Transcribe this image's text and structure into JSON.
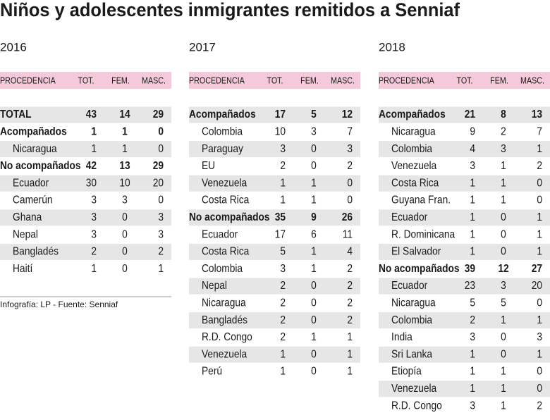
{
  "title": "Niños y adolescentes inmigrantes remitidos a Senniaf",
  "tables": [
    {
      "year": "2016",
      "columns": [
        "PROCEDENCIA",
        "TOT.",
        "FEM.",
        "MASC."
      ],
      "groups": [
        {
          "row": [
            "TOTAL",
            43,
            14,
            29
          ],
          "items": []
        },
        {
          "row": [
            "Acompañados",
            1,
            1,
            0
          ],
          "items": [
            [
              "Nicaragua",
              1,
              1,
              0
            ]
          ]
        },
        {
          "row": [
            "No acompañados",
            42,
            13,
            29
          ],
          "items": [
            [
              "Ecuador",
              30,
              10,
              20
            ],
            [
              "Camerún",
              3,
              3,
              0
            ],
            [
              "Ghana",
              3,
              0,
              3
            ],
            [
              "Nepal",
              3,
              0,
              3
            ],
            [
              "Bangladés",
              2,
              0,
              2
            ],
            [
              "Haití",
              1,
              0,
              1
            ]
          ]
        }
      ]
    },
    {
      "year": "2017",
      "columns": [
        "PROCEDENCIA",
        "TOT.",
        "FEM.",
        "MASC."
      ],
      "groups": [
        {
          "row": [
            "Acompañados",
            17,
            5,
            12
          ],
          "items": [
            [
              "Colombia",
              10,
              3,
              7
            ],
            [
              "Paraguay",
              3,
              0,
              3
            ],
            [
              "EU",
              2,
              0,
              2
            ],
            [
              "Venezuela",
              1,
              1,
              0
            ],
            [
              "Costa Rica",
              1,
              1,
              0
            ]
          ]
        },
        {
          "row": [
            "No acompañados",
            35,
            9,
            26
          ],
          "items": [
            [
              "Ecuador",
              17,
              6,
              11
            ],
            [
              "Costa Rica",
              5,
              1,
              4
            ],
            [
              "Colombia",
              3,
              1,
              2
            ],
            [
              "Nepal",
              2,
              0,
              2
            ],
            [
              "Nicaragua",
              2,
              0,
              2
            ],
            [
              "Bangladés",
              2,
              0,
              2
            ],
            [
              "R.D. Congo",
              2,
              1,
              1
            ],
            [
              "Venezuela",
              1,
              0,
              1
            ],
            [
              "Perú",
              1,
              0,
              1
            ]
          ]
        }
      ]
    },
    {
      "year": "2018",
      "columns": [
        "PROCEDENCIA",
        "TOT.",
        "FEM.",
        "MASC."
      ],
      "groups": [
        {
          "row": [
            "Acompañados",
            21,
            8,
            13
          ],
          "items": [
            [
              "Nicaragua",
              9,
              2,
              7
            ],
            [
              "Colombia",
              4,
              3,
              1
            ],
            [
              "Venezuela",
              3,
              1,
              2
            ],
            [
              "Costa Rica",
              1,
              1,
              0
            ],
            [
              "Guyana Fran.",
              1,
              1,
              0
            ],
            [
              "Ecuador",
              1,
              0,
              1
            ],
            [
              "R. Dominicana",
              1,
              0,
              1
            ],
            [
              "El Salvador",
              1,
              0,
              1
            ]
          ]
        },
        {
          "row": [
            "No acompañados",
            39,
            12,
            27
          ],
          "items": [
            [
              "Ecuador",
              23,
              3,
              20
            ],
            [
              "Nicaragua",
              5,
              5,
              0
            ],
            [
              "Colombia",
              2,
              1,
              1
            ],
            [
              "India",
              3,
              0,
              3
            ],
            [
              "Sri Lanka",
              1,
              0,
              1
            ],
            [
              "Etiopía",
              1,
              1,
              0
            ],
            [
              "Venezuela",
              1,
              1,
              0
            ],
            [
              "R.D. Congo",
              3,
              1,
              2
            ]
          ]
        }
      ]
    }
  ],
  "footer": "Infografía: LP  - Fuente: Senniaf"
}
